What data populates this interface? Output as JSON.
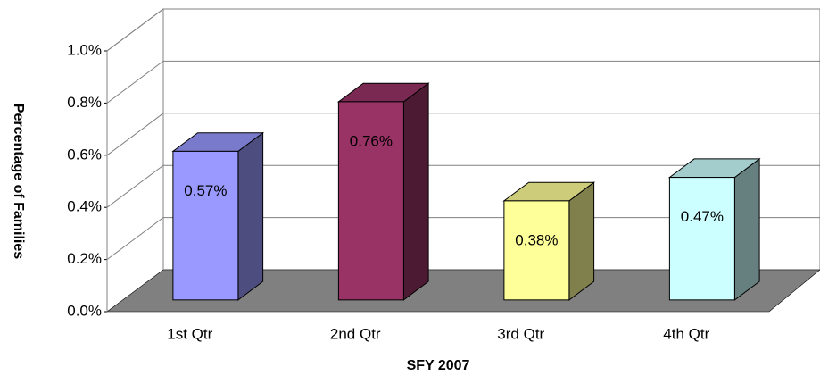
{
  "chart_data": {
    "type": "bar3d",
    "categories": [
      "1st Qtr",
      "2nd Qtr",
      "3rd Qtr",
      "4th Qtr"
    ],
    "values": [
      0.57,
      0.76,
      0.38,
      0.47
    ],
    "value_labels": [
      "0.57%",
      "0.76%",
      "0.38%",
      "0.47%"
    ],
    "colors": [
      "#9999ff",
      "#993366",
      "#ffff99",
      "#ccffff"
    ],
    "ylim": [
      0,
      1.0
    ],
    "yticks": [
      {
        "value": 0,
        "label": "0.0%"
      },
      {
        "value": 0.2,
        "label": "0.2%"
      },
      {
        "value": 0.4,
        "label": "0.4%"
      },
      {
        "value": 0.6,
        "label": "0.6%"
      },
      {
        "value": 0.8,
        "label": "0.8%"
      },
      {
        "value": 1.0,
        "label": "1.0%"
      }
    ],
    "y_label": "Percentage of Families",
    "x_label": "SFY 2007",
    "grid": true
  }
}
